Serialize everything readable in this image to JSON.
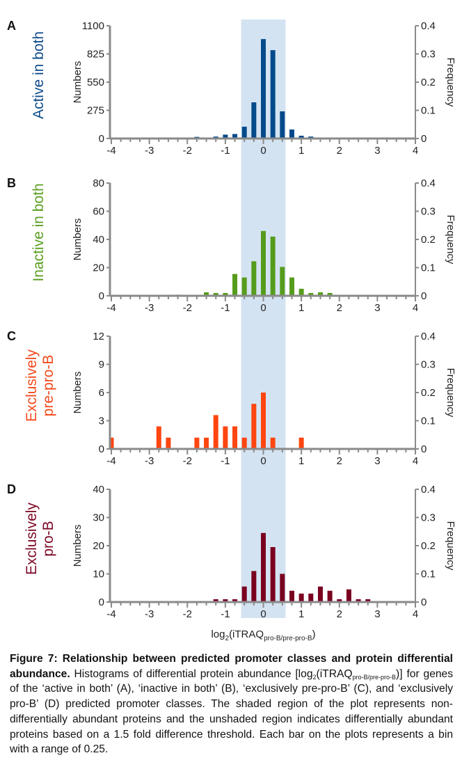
{
  "figure": {
    "x_axis_label_main": "log",
    "x_axis_label_sub2": "2",
    "x_axis_label_paren": "(iTRAQ",
    "x_axis_label_sub": "pro-B/pre-pro-B",
    "x_axis_label_close": ")",
    "left_axis_title": "Numbers",
    "right_axis_title": "Frequency",
    "shaded_region": {
      "x_min": -0.585,
      "x_max": 0.585,
      "color": "#d4e3f2",
      "meaning": "non-differentially abundant (1.5 fold threshold)"
    }
  },
  "chart_data": [
    {
      "type": "bar",
      "panel": "A",
      "title": "Active in both",
      "title_color": "#0f4c8a",
      "bar_color": "#044a8b",
      "xlabel": "log2(iTRAQ pro-B/pre-pro-B)",
      "ylabel": "Numbers",
      "y2label": "Frequency",
      "xlim": [
        -4,
        4
      ],
      "xticks": [
        "-4",
        "-3",
        "-2",
        "-1",
        "0",
        "1",
        "2",
        "3",
        "4"
      ],
      "ylim": [
        0,
        1100
      ],
      "yticks": [
        "0",
        "275",
        "550",
        "825",
        "1100"
      ],
      "y2lim": [
        0,
        0.4
      ],
      "y2ticks": [
        "0",
        "0.1",
        "0.2",
        "0.3",
        "0.4"
      ],
      "bin_width": 0.25,
      "x": [
        -1.75,
        -1.25,
        -1.0,
        -0.75,
        -0.5,
        -0.25,
        0,
        0.25,
        0.5,
        0.75,
        1.0,
        1.25
      ],
      "values": [
        16,
        19,
        38,
        44,
        115,
        353,
        970,
        862,
        265,
        88,
        27,
        19
      ]
    },
    {
      "type": "bar",
      "panel": "B",
      "title": "Inactive in both",
      "title_color": "#5a9e1f",
      "bar_color": "#569c1c",
      "xlabel": "log2(iTRAQ pro-B/pre-pro-B)",
      "ylabel": "Numbers",
      "y2label": "Frequency",
      "xlim": [
        -4,
        4
      ],
      "xticks": [
        "-4",
        "-3",
        "-2",
        "-1",
        "0",
        "1",
        "2",
        "3",
        "4"
      ],
      "ylim": [
        0,
        80
      ],
      "yticks": [
        "0",
        "20",
        "40",
        "60",
        "80"
      ],
      "y2lim": [
        0,
        0.4
      ],
      "y2ticks": [
        "0",
        "0.1",
        "0.2",
        "0.3",
        "0.4"
      ],
      "bin_width": 0.25,
      "x": [
        -2.25,
        -1.5,
        -1.25,
        -1.0,
        -0.75,
        -0.5,
        -0.25,
        0,
        0.25,
        0.5,
        0.75,
        1.0,
        1.25,
        1.5,
        1.75
      ],
      "values": [
        0.8,
        2.5,
        2,
        2,
        15.5,
        13,
        24.5,
        46,
        42,
        20.5,
        13,
        5,
        2,
        2.5,
        2
      ]
    },
    {
      "type": "bar",
      "panel": "C",
      "title": "Exclusively pre-pro-B",
      "title_lines": [
        "Exclusively",
        "pre-pro-B"
      ],
      "title_color": "#f24a1c",
      "bar_color": "#ff4510",
      "xlabel": "log2(iTRAQ pro-B/pre-pro-B)",
      "ylabel": "Numbers",
      "y2label": "Frequency",
      "xlim": [
        -4,
        4
      ],
      "xticks": [
        "-4",
        "-3",
        "-2",
        "-1",
        "0",
        "1",
        "2",
        "3",
        "4"
      ],
      "ylim": [
        0,
        12
      ],
      "yticks": [
        "0",
        "3",
        "6",
        "9",
        "12"
      ],
      "y2lim": [
        0,
        0.4
      ],
      "y2ticks": [
        "0",
        "0.1",
        "0.2",
        "0.3",
        "0.4"
      ],
      "bin_width": 0.25,
      "x": [
        -4.0,
        -2.75,
        -2.5,
        -1.75,
        -1.5,
        -1.25,
        -1.0,
        -0.75,
        -0.5,
        -0.25,
        0,
        0.25,
        1.0
      ],
      "values": [
        1.2,
        2.4,
        1.2,
        1.2,
        1.2,
        3.6,
        2.4,
        2.4,
        1.2,
        4.8,
        6.0,
        1.2,
        1.2
      ]
    },
    {
      "type": "bar",
      "panel": "D",
      "title": "Exclusively pro-B",
      "title_lines": [
        "Exclusively",
        "pro-B"
      ],
      "title_color": "#7d0a26",
      "bar_color": "#7a0020",
      "xlabel": "log2(iTRAQ pro-B/pre-pro-B)",
      "ylabel": "Numbers",
      "y2label": "Frequency",
      "xlim": [
        -4,
        4
      ],
      "xticks": [
        "-4",
        "-3",
        "-2",
        "-1",
        "0",
        "1",
        "2",
        "3",
        "4"
      ],
      "ylim": [
        0,
        40
      ],
      "yticks": [
        "0",
        "10",
        "20",
        "30",
        "40"
      ],
      "y2lim": [
        0,
        0.4
      ],
      "y2ticks": [
        "0",
        "0.1",
        "0.2",
        "0.3",
        "0.4"
      ],
      "bin_width": 0.25,
      "x": [
        -1.25,
        -1.0,
        -0.75,
        -0.5,
        -0.25,
        0,
        0.25,
        0.5,
        0.75,
        1.0,
        1.25,
        1.5,
        1.75,
        2.0,
        2.25,
        2.5,
        2.75
      ],
      "values": [
        1,
        1,
        1,
        5.5,
        11,
        24.5,
        19.5,
        10,
        4,
        3,
        3,
        5.5,
        4,
        1,
        4.5,
        1,
        1
      ]
    }
  ],
  "caption": {
    "bold": "Figure 7: Relationship between predicted promoter classes and protein differential abundance.",
    "text_1": " Histograms of differential protein abundance [log",
    "sub_2": "2",
    "text_2": "(iTRAQ",
    "sub_ratio": "pro-B/pre-pro-B",
    "text_3": ")] for genes of the ‘active in both’ (A), ‘inactive in both’ (B), ‘exclusively pre-pro-B’ (C), and ‘exclusively pro-B’ (D) predicted promoter classes. The shaded region of the plot represents non-differentially abundant proteins and the unshaded region indicates differentially abundant proteins based on a 1.5 fold difference threshold. Each bar on the plots represents a bin with a range of 0.25."
  }
}
